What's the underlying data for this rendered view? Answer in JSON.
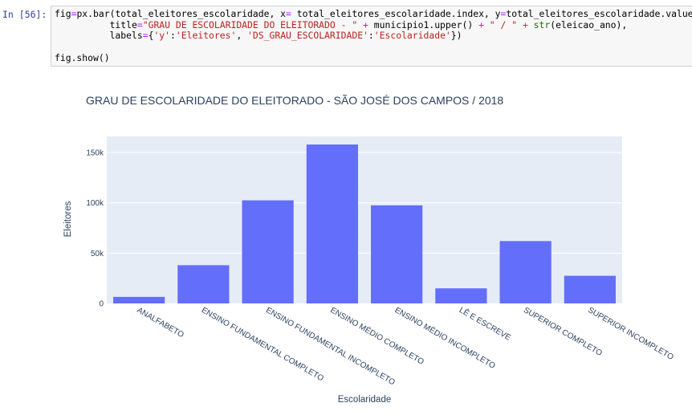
{
  "notebook": {
    "prompt": "In [56]:",
    "code_lines": [
      [
        {
          "t": "fig"
        },
        {
          "t": "=",
          "c": "op"
        },
        {
          "t": "px.bar(total_eleitores_escolaridade, x"
        },
        {
          "t": "=",
          "c": "op"
        },
        {
          "t": " total_eleitores_escolaridade.index, y"
        },
        {
          "t": "=",
          "c": "op"
        },
        {
          "t": "total_eleitores_escolaridade.values,"
        }
      ],
      [
        {
          "t": "          title"
        },
        {
          "t": "=",
          "c": "op"
        },
        {
          "t": "\"GRAU DE ESCOLARIDADE DO ELEITORADO - \"",
          "c": "str"
        },
        {
          "t": " "
        },
        {
          "t": "+",
          "c": "op"
        },
        {
          "t": " municipio1.upper() "
        },
        {
          "t": "+",
          "c": "op"
        },
        {
          "t": " "
        },
        {
          "t": "\" / \"",
          "c": "str"
        },
        {
          "t": " "
        },
        {
          "t": "+",
          "c": "op"
        },
        {
          "t": " "
        },
        {
          "t": "str",
          "c": "bi"
        },
        {
          "t": "(eleicao_ano),"
        }
      ],
      [
        {
          "t": "          labels"
        },
        {
          "t": "=",
          "c": "op"
        },
        {
          "t": "{"
        },
        {
          "t": "'y'",
          "c": "str"
        },
        {
          "t": ":"
        },
        {
          "t": "'Eleitores'",
          "c": "str"
        },
        {
          "t": ", "
        },
        {
          "t": "'DS_GRAU_ESCOLARIDADE'",
          "c": "str"
        },
        {
          "t": ":"
        },
        {
          "t": "'Escolaridade'",
          "c": "str"
        },
        {
          "t": "})"
        }
      ],
      [
        {
          "t": ""
        }
      ],
      [
        {
          "t": "fig.show()"
        }
      ]
    ]
  },
  "colors": {
    "bar": "#636efa",
    "plot_bg": "#e5ecf6",
    "grid": "#ffffff",
    "text": "#2a3f5f"
  },
  "chart_data": {
    "type": "bar",
    "title": "GRAU DE ESCOLARIDADE DO ELEITORADO - SÃO JOSÉ DOS CAMPOS / 2018",
    "xlabel": "Escolaridade",
    "ylabel": "Eleitores",
    "categories": [
      "ANALFABETO",
      "ENSINO FUNDAMENTAL COMPLETO",
      "ENSINO FUNDAMENTAL INCOMPLETO",
      "ENSINO MÉDIO COMPLETO",
      "ENSINO MÉDIO INCOMPLETO",
      "LÊ E ESCREVE",
      "SUPERIOR COMPLETO",
      "SUPERIOR INCOMPLETO"
    ],
    "values": [
      6500,
      38000,
      102500,
      158000,
      97500,
      15000,
      62000,
      27500
    ],
    "yticks": [
      0,
      50000,
      100000,
      150000
    ],
    "ytick_labels": [
      "0",
      "50k",
      "100k",
      "150k"
    ],
    "ylim": [
      0,
      166000
    ],
    "grid": true
  }
}
